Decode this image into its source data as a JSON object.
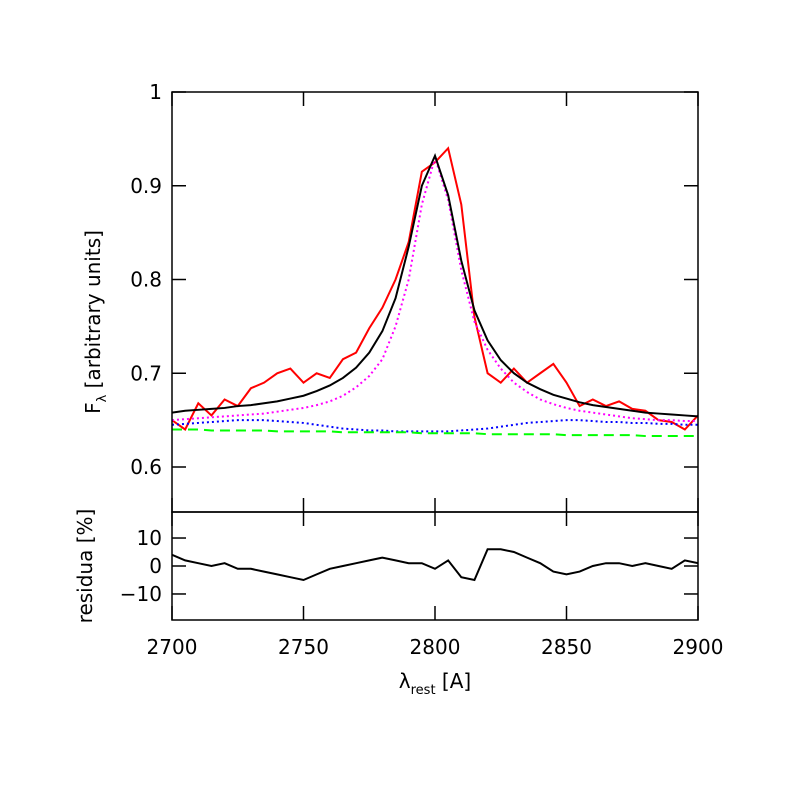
{
  "chart_data": [
    {
      "type": "line",
      "ylabel": [
        "F",
        "λ",
        " [arbitrary units]"
      ],
      "xlim": [
        2700,
        2900
      ],
      "xticks": [
        2700,
        2750,
        2800,
        2850,
        2900
      ],
      "ylim": [
        0.552,
        1
      ],
      "yticks": [
        0.6,
        0.7,
        0.8,
        0.9,
        1
      ],
      "x": [
        2700,
        2705,
        2710,
        2715,
        2720,
        2725,
        2730,
        2735,
        2740,
        2745,
        2750,
        2755,
        2760,
        2765,
        2770,
        2775,
        2780,
        2785,
        2790,
        2795,
        2800,
        2805,
        2810,
        2815,
        2820,
        2825,
        2830,
        2835,
        2840,
        2845,
        2850,
        2855,
        2860,
        2865,
        2870,
        2875,
        2880,
        2885,
        2890,
        2895,
        2900
      ],
      "series": [
        {
          "color": "#ff0000",
          "linestyle": "solid",
          "values": [
            0.65,
            0.64,
            0.668,
            0.655,
            0.672,
            0.665,
            0.684,
            0.69,
            0.7,
            0.705,
            0.69,
            0.7,
            0.695,
            0.715,
            0.722,
            0.748,
            0.77,
            0.8,
            0.84,
            0.915,
            0.925,
            0.94,
            0.88,
            0.76,
            0.7,
            0.69,
            0.705,
            0.69,
            0.7,
            0.71,
            0.69,
            0.665,
            0.672,
            0.665,
            0.67,
            0.662,
            0.66,
            0.65,
            0.648,
            0.64,
            0.655
          ]
        },
        {
          "color": "#ff00ff",
          "linestyle": "dotted",
          "values": [
            0.65,
            0.651,
            0.652,
            0.653,
            0.654,
            0.655,
            0.656,
            0.657,
            0.659,
            0.661,
            0.663,
            0.666,
            0.67,
            0.676,
            0.685,
            0.697,
            0.715,
            0.75,
            0.8,
            0.88,
            0.93,
            0.885,
            0.81,
            0.755,
            0.725,
            0.705,
            0.69,
            0.68,
            0.672,
            0.667,
            0.663,
            0.66,
            0.658,
            0.656,
            0.654,
            0.652,
            0.651,
            0.65,
            0.65,
            0.649,
            0.649
          ]
        },
        {
          "color": "#0000ff",
          "linestyle": "dotted",
          "values": [
            0.645,
            0.646,
            0.647,
            0.648,
            0.649,
            0.65,
            0.65,
            0.65,
            0.649,
            0.648,
            0.647,
            0.645,
            0.643,
            0.641,
            0.64,
            0.639,
            0.639,
            0.638,
            0.638,
            0.638,
            0.638,
            0.638,
            0.639,
            0.64,
            0.641,
            0.643,
            0.645,
            0.647,
            0.648,
            0.649,
            0.65,
            0.65,
            0.649,
            0.648,
            0.648,
            0.647,
            0.647,
            0.646,
            0.646,
            0.645,
            0.645
          ]
        },
        {
          "color": "#00ff00",
          "linestyle": "dashed",
          "values": [
            0.64,
            0.64,
            0.64,
            0.639,
            0.639,
            0.639,
            0.639,
            0.639,
            0.638,
            0.638,
            0.638,
            0.638,
            0.638,
            0.637,
            0.637,
            0.637,
            0.637,
            0.637,
            0.637,
            0.636,
            0.636,
            0.636,
            0.636,
            0.636,
            0.635,
            0.635,
            0.635,
            0.635,
            0.635,
            0.635,
            0.634,
            0.634,
            0.634,
            0.634,
            0.634,
            0.634,
            0.633,
            0.633,
            0.633,
            0.633,
            0.633
          ]
        },
        {
          "color": "#000000",
          "linestyle": "solid",
          "values": [
            0.658,
            0.66,
            0.661,
            0.662,
            0.663,
            0.665,
            0.666,
            0.668,
            0.67,
            0.673,
            0.676,
            0.681,
            0.687,
            0.695,
            0.706,
            0.722,
            0.745,
            0.78,
            0.835,
            0.9,
            0.932,
            0.89,
            0.82,
            0.767,
            0.735,
            0.714,
            0.7,
            0.69,
            0.683,
            0.677,
            0.673,
            0.669,
            0.666,
            0.664,
            0.662,
            0.66,
            0.658,
            0.657,
            0.656,
            0.655,
            0.654
          ]
        }
      ]
    },
    {
      "type": "line",
      "ylabel": [
        "residua [%]"
      ],
      "xlabel": [
        "λ",
        "rest",
        " [A]"
      ],
      "xlim": [
        2700,
        2900
      ],
      "xticks": [
        2700,
        2750,
        2800,
        2850,
        2900
      ],
      "ylim": [
        -19.3,
        19.3
      ],
      "yticks": [
        {
          "value": -10,
          "label": "−10"
        },
        0,
        10
      ],
      "x": [
        2700,
        2705,
        2710,
        2715,
        2720,
        2725,
        2730,
        2735,
        2740,
        2745,
        2750,
        2755,
        2760,
        2765,
        2770,
        2775,
        2780,
        2785,
        2790,
        2795,
        2800,
        2805,
        2810,
        2815,
        2820,
        2825,
        2830,
        2835,
        2840,
        2845,
        2850,
        2855,
        2860,
        2865,
        2870,
        2875,
        2880,
        2885,
        2890,
        2895,
        2900
      ],
      "series": [
        {
          "color": "#000000",
          "linestyle": "solid",
          "values": [
            4,
            2,
            1,
            0,
            1,
            -1,
            -1,
            -2,
            -3,
            -4,
            -5,
            -3,
            -1,
            0,
            1,
            2,
            3,
            2,
            1,
            1,
            -1,
            2,
            -4,
            -5,
            6,
            6,
            5,
            3,
            1,
            -2,
            -3,
            -2,
            0,
            1,
            1,
            0,
            1,
            0,
            -1,
            2,
            1
          ]
        }
      ]
    }
  ]
}
